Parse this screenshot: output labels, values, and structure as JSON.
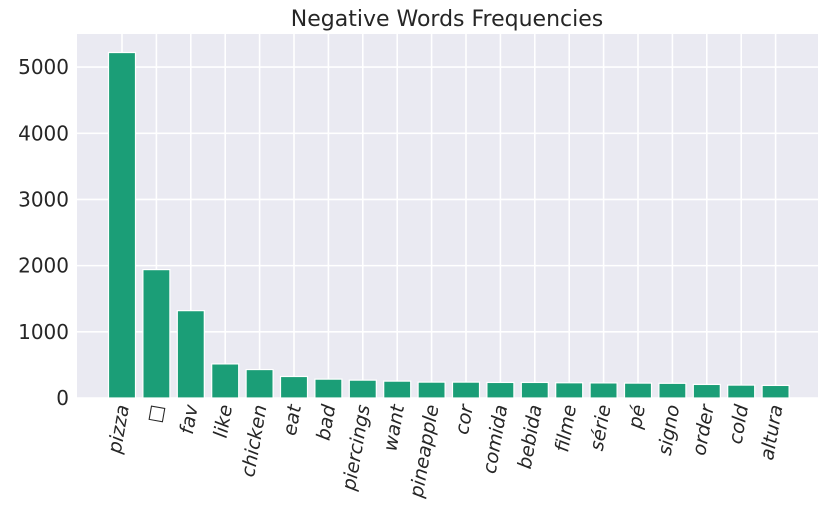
{
  "chart_data": {
    "type": "bar",
    "title": "Negative Words Frequencies",
    "xlabel": "",
    "ylabel": "",
    "categories": [
      "pizza",
      "□",
      "fav",
      "like",
      "chicken",
      "eat",
      "bad",
      "piercings",
      "want",
      "pineapple",
      "cor",
      "comida",
      "bebida",
      "filme",
      "série",
      "pé",
      "signo",
      "order",
      "cold",
      "altura"
    ],
    "values": [
      5220,
      1940,
      1320,
      515,
      430,
      325,
      285,
      270,
      255,
      240,
      240,
      235,
      235,
      230,
      228,
      225,
      222,
      205,
      195,
      190
    ],
    "ylim": [
      0,
      5500
    ],
    "yticks": [
      0,
      1000,
      2000,
      3000,
      4000,
      5000
    ],
    "grid": true,
    "colors": {
      "bar": "#1b9e77",
      "background": "#eaeaf2",
      "grid": "#ffffff",
      "text": "#262626"
    }
  }
}
